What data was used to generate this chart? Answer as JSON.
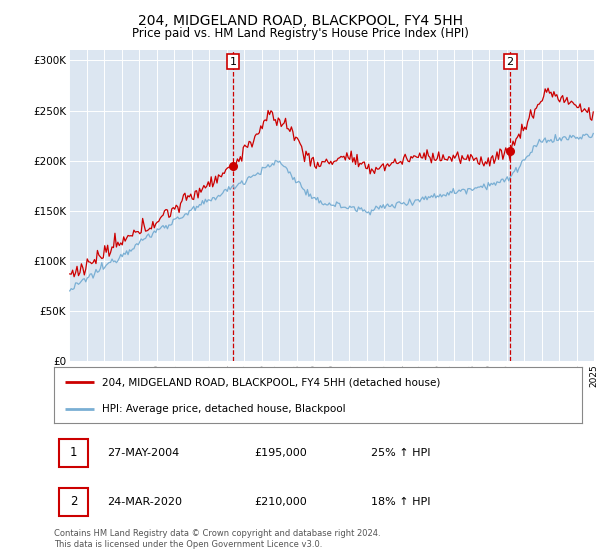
{
  "title": "204, MIDGELAND ROAD, BLACKPOOL, FY4 5HH",
  "subtitle": "Price paid vs. HM Land Registry's House Price Index (HPI)",
  "red_label": "204, MIDGELAND ROAD, BLACKPOOL, FY4 5HH (detached house)",
  "blue_label": "HPI: Average price, detached house, Blackpool",
  "marker1": {
    "date": "27-MAY-2004",
    "price": 195000,
    "pct": "25%",
    "dir": "↑"
  },
  "marker2": {
    "date": "24-MAR-2020",
    "price": 210000,
    "pct": "18%",
    "dir": "↑"
  },
  "footer": "Contains HM Land Registry data © Crown copyright and database right 2024.\nThis data is licensed under the Open Government Licence v3.0.",
  "ylim": [
    0,
    310000
  ],
  "yticks": [
    0,
    50000,
    100000,
    150000,
    200000,
    250000,
    300000
  ],
  "bg_color": "#dce6f1",
  "red_color": "#cc0000",
  "blue_color": "#7aafd4",
  "marker1_x": 2004.37,
  "marker2_x": 2020.21,
  "marker1_y": 195000,
  "marker2_y": 210000,
  "xlim_start": 1995,
  "xlim_end": 2025
}
